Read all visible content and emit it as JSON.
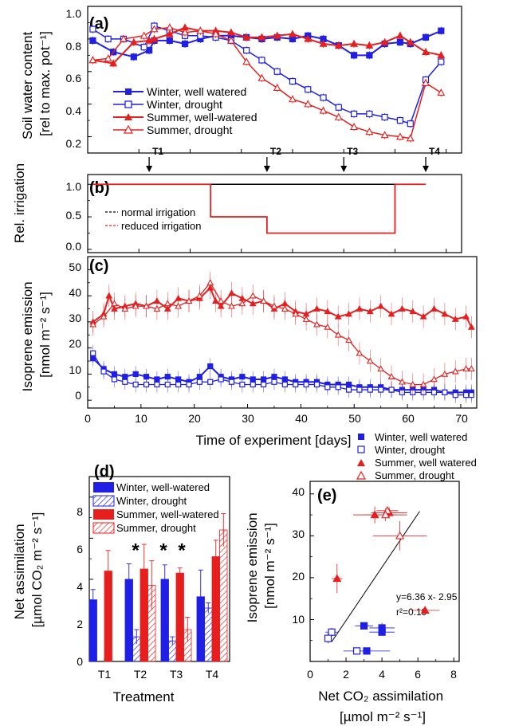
{
  "colors": {
    "blue": "#1f1fe6",
    "red": "#e61e1e",
    "black": "#000000"
  },
  "chart_data": [
    {
      "panel": "a",
      "type": "line",
      "panel_label": "(a)",
      "ylabel_line1": "Soil water content",
      "ylabel_line2": "[rel to max. pot⁻¹]",
      "xlim": [
        0,
        73
      ],
      "ylim": [
        0.1,
        1.0
      ],
      "yticks": [
        "0.2",
        "0.4",
        "0.6",
        "0.8",
        "1.0"
      ],
      "legend": {
        "placement": "left-middle"
      },
      "arrows": [
        {
          "label": "T1",
          "x": 12
        },
        {
          "label": "T2",
          "x": 35
        },
        {
          "label": "T3",
          "x": 50
        },
        {
          "label": "T4",
          "x": 66
        }
      ],
      "series": [
        {
          "name": "Winter, well watered",
          "color": "#1f1fe6",
          "marker": "square-filled",
          "x": [
            1,
            5,
            9,
            12,
            13,
            16,
            19,
            22,
            25,
            28,
            31,
            34,
            37,
            40,
            43,
            46,
            49,
            52,
            55,
            58,
            61,
            63,
            66,
            69
          ],
          "y": [
            0.79,
            0.72,
            0.69,
            0.73,
            0.79,
            0.79,
            0.77,
            0.8,
            0.82,
            0.82,
            0.81,
            0.8,
            0.81,
            0.8,
            0.82,
            0.8,
            0.76,
            0.7,
            0.7,
            0.77,
            0.78,
            0.77,
            0.81,
            0.85
          ]
        },
        {
          "name": "Winter, drought",
          "color": "#1f1fe6",
          "marker": "square-open",
          "x": [
            1,
            4,
            7,
            11,
            13,
            16,
            19,
            22,
            25,
            28,
            31,
            34,
            37,
            40,
            43,
            46,
            49,
            52,
            55,
            58,
            61,
            63,
            66,
            69
          ],
          "y": [
            0.86,
            0.8,
            0.8,
            0.75,
            0.88,
            0.85,
            0.82,
            0.82,
            0.81,
            0.79,
            0.73,
            0.67,
            0.6,
            0.54,
            0.49,
            0.44,
            0.38,
            0.34,
            0.34,
            0.32,
            0.3,
            0.28,
            0.55,
            0.66
          ]
        },
        {
          "name": "Summer, well-watered",
          "color": "#e61e1e",
          "marker": "triangle-filled",
          "x": [
            1,
            5,
            9,
            12,
            13,
            16,
            19,
            22,
            25,
            28,
            31,
            34,
            37,
            40,
            43,
            46,
            49,
            52,
            55,
            58,
            61,
            63,
            66,
            69
          ],
          "y": [
            0.67,
            0.65,
            0.78,
            0.79,
            0.8,
            0.83,
            0.87,
            0.85,
            0.85,
            0.84,
            0.81,
            0.81,
            0.82,
            0.83,
            0.8,
            0.77,
            0.76,
            0.77,
            0.76,
            0.78,
            0.82,
            0.78,
            0.72,
            0.7
          ]
        },
        {
          "name": "Summer, drought",
          "color": "#e61e1e",
          "marker": "triangle-open",
          "x": [
            1,
            4,
            7,
            11,
            13,
            16,
            19,
            22,
            25,
            28,
            31,
            34,
            37,
            40,
            43,
            46,
            49,
            52,
            55,
            58,
            61,
            63,
            66,
            69
          ],
          "y": [
            0.67,
            0.68,
            0.8,
            0.82,
            0.86,
            0.87,
            0.84,
            0.85,
            0.83,
            0.79,
            0.66,
            0.56,
            0.5,
            0.43,
            0.4,
            0.36,
            0.32,
            0.26,
            0.23,
            0.21,
            0.2,
            0.19,
            0.53,
            0.47
          ]
        }
      ]
    },
    {
      "panel": "b",
      "type": "line",
      "panel_label": "(b)",
      "ylabel_line1": "Rel. irrigation",
      "xlim": [
        0,
        73
      ],
      "ylim": [
        -0.05,
        1.15
      ],
      "yticks": [
        "0.0",
        "0.5",
        "1.0"
      ],
      "legend": {
        "placement": "left-middle"
      },
      "series": [
        {
          "name": "normal irrigation",
          "color": "#000000",
          "dashed": true,
          "x": [
            1,
            66
          ],
          "y": [
            1.0,
            1.0
          ]
        },
        {
          "name": "reduced irrigation",
          "color": "#e61e1e",
          "dashed": true,
          "x": [
            1,
            24,
            24,
            35,
            35,
            60,
            60,
            66
          ],
          "y": [
            1.0,
            1.0,
            0.5,
            0.5,
            0.25,
            0.25,
            1.0,
            1.0
          ]
        }
      ]
    },
    {
      "panel": "c",
      "type": "line",
      "panel_label": "(c)",
      "ylabel_line1": "Isoprene emission",
      "ylabel_line2": "[nmol m⁻² s⁻¹]",
      "xlabel": "Time of experiment [days]",
      "xlim": [
        0,
        73
      ],
      "ylim": [
        -3,
        55
      ],
      "xticks": [
        "0",
        "10",
        "20",
        "30",
        "40",
        "50",
        "60",
        "70"
      ],
      "yticks": [
        "0",
        "10",
        "20",
        "30",
        "40",
        "50"
      ],
      "series": [
        {
          "name": "Winter, well watered",
          "color": "#1f1fe6",
          "marker": "square-filled",
          "x": [
            1,
            3,
            5,
            7,
            9,
            11,
            13,
            15,
            17,
            19,
            21,
            23,
            25,
            27,
            29,
            31,
            33,
            35,
            37,
            39,
            41,
            43,
            45,
            47,
            49,
            51,
            53,
            55,
            57,
            59,
            61,
            63,
            65,
            67,
            69,
            71,
            72
          ],
          "y": [
            16,
            12,
            10,
            9,
            10,
            9,
            8,
            9,
            8,
            7,
            9,
            13,
            9,
            8,
            9,
            8,
            8,
            9,
            8,
            7,
            7,
            7,
            6,
            6,
            6,
            5,
            5,
            5,
            4,
            4,
            4,
            4,
            4,
            3,
            3,
            3,
            3
          ]
        },
        {
          "name": "Winter, drought",
          "color": "#1f1fe6",
          "marker": "square-open",
          "x": [
            1,
            3,
            5,
            7,
            9,
            11,
            13,
            15,
            17,
            19,
            21,
            23,
            25,
            27,
            29,
            31,
            33,
            35,
            37,
            39,
            41,
            43,
            45,
            47,
            49,
            51,
            53,
            55,
            57,
            59,
            61,
            63,
            65,
            67,
            69,
            71,
            72
          ],
          "y": [
            18,
            11,
            8,
            7,
            6,
            6,
            6,
            6,
            6,
            6,
            7,
            7,
            8,
            7,
            6,
            6,
            6,
            7,
            6,
            6,
            6,
            6,
            5,
            5,
            4,
            4,
            4,
            4,
            4,
            3,
            3,
            3,
            3,
            3,
            2,
            2,
            2
          ]
        },
        {
          "name": "Summer, well watered",
          "color": "#e61e1e",
          "marker": "triangle-filled",
          "x": [
            1,
            3,
            4,
            5,
            7,
            9,
            11,
            13,
            15,
            17,
            19,
            21,
            23,
            24,
            25,
            27,
            29,
            31,
            33,
            35,
            37,
            39,
            41,
            43,
            45,
            47,
            49,
            51,
            53,
            55,
            57,
            59,
            61,
            63,
            65,
            67,
            69,
            71,
            72
          ],
          "y": [
            30,
            33,
            40,
            35,
            36,
            37,
            36,
            38,
            35,
            39,
            38,
            39,
            43,
            38,
            36,
            41,
            39,
            37,
            38,
            35,
            37,
            34,
            33,
            35,
            34,
            32,
            33,
            35,
            34,
            36,
            33,
            35,
            34,
            32,
            35,
            33,
            31,
            32,
            28
          ]
        },
        {
          "name": "Summer, drought",
          "color": "#e61e1e",
          "marker": "triangle-open",
          "x": [
            1,
            3,
            5,
            7,
            9,
            11,
            13,
            15,
            17,
            19,
            21,
            23,
            25,
            27,
            29,
            31,
            33,
            35,
            37,
            39,
            41,
            43,
            45,
            47,
            49,
            51,
            53,
            55,
            57,
            59,
            61,
            63,
            65,
            67,
            69,
            71,
            72
          ],
          "y": [
            29,
            32,
            37,
            35,
            36,
            36,
            35,
            37,
            36,
            38,
            40,
            45,
            38,
            36,
            37,
            40,
            38,
            36,
            35,
            33,
            31,
            29,
            28,
            25,
            23,
            18,
            15,
            12,
            9,
            7,
            6,
            6,
            8,
            10,
            11,
            12,
            12
          ]
        }
      ]
    },
    {
      "panel": "d",
      "type": "bar",
      "panel_label": "(d)",
      "ylabel_line1": "Net assimilation",
      "ylabel_line2": "[µmol CO₂ m⁻² s⁻¹]",
      "xlabel": "Treatment",
      "categories": [
        "T1",
        "T2",
        "T3",
        "T4"
      ],
      "ylim": [
        0,
        9
      ],
      "yticks": [
        "0",
        "2",
        "4",
        "6",
        "8"
      ],
      "legend": {
        "placement": "top"
      },
      "series": [
        {
          "name": "Winter, well-watered",
          "color": "#1f1fe6",
          "hatched": false,
          "values": [
            3.0,
            4.0,
            4.0,
            3.15
          ],
          "errors": [
            0.5,
            0.75,
            0.7,
            1.3
          ]
        },
        {
          "name": "Winter, drought",
          "color": "#1f1fe6",
          "hatched": true,
          "values": [
            null,
            1.2,
            1.0,
            2.6
          ],
          "errors": [
            0,
            0.35,
            0.2,
            0.25
          ]
        },
        {
          "name": "Summer, well-watered",
          "color": "#e61e1e",
          "hatched": false,
          "values": [
            4.4,
            4.5,
            4.3,
            5.1
          ],
          "errors": [
            1.0,
            1.2,
            0.25,
            0.8
          ]
        },
        {
          "name": "Summer, drought",
          "color": "#e61e1e",
          "hatched": true,
          "values": [
            null,
            3.7,
            1.55,
            6.4
          ],
          "errors": [
            0,
            1.2,
            0.6,
            0.8
          ]
        }
      ],
      "significance": [
        {
          "category": "T2",
          "symbol": "*",
          "color": "#1f1fe6"
        },
        {
          "category": "T3",
          "symbol": "*",
          "color": "#1f1fe6"
        },
        {
          "category": "T3",
          "symbol": "*",
          "color": "#e61e1e"
        }
      ]
    },
    {
      "panel": "e",
      "type": "scatter",
      "panel_label": "(e)",
      "ylabel_line1": "Isoprene emission",
      "ylabel_line2": "[nmol m⁻² s⁻¹]",
      "xlabel_line1": "Net CO₂ assimilation",
      "xlabel_line2": "[µmol m⁻² s⁻¹]",
      "xlim": [
        0,
        8.3
      ],
      "ylim": [
        0,
        43
      ],
      "xticks": [
        "0",
        "2",
        "4",
        "6",
        "8"
      ],
      "yticks": [
        "10",
        "20",
        "30",
        "40"
      ],
      "legend": {
        "placement": "top"
      },
      "fit": {
        "equation": "y=6.36 x- 2.95",
        "r2": "r²=0.19",
        "x": [
          1.2,
          6.1
        ]
      },
      "series": [
        {
          "name": "Winter, well watered",
          "color": "#1f1fe6",
          "marker": "square-filled",
          "points": [
            {
              "x": 3.0,
              "y": 8.5,
              "xe": 0.5,
              "ye": 0.8
            },
            {
              "x": 4.0,
              "y": 8.0,
              "xe": 0.7,
              "ye": 1.2
            },
            {
              "x": 4.0,
              "y": 7.0,
              "xe": 0.7,
              "ye": 0.8
            },
            {
              "x": 3.15,
              "y": 2.5,
              "xe": 1.3,
              "ye": 0.3
            }
          ]
        },
        {
          "name": "Winter, drought",
          "color": "#1f1fe6",
          "marker": "square-open",
          "points": [
            {
              "x": 1.2,
              "y": 7.0,
              "xe": 0.35,
              "ye": 1.0
            },
            {
              "x": 1.0,
              "y": 5.5,
              "xe": 0.2,
              "ye": 1.2
            },
            {
              "x": 2.6,
              "y": 2.5,
              "xe": 0.25,
              "ye": 0.4
            }
          ]
        },
        {
          "name": "Summer, well watered",
          "color": "#e61e1e",
          "marker": "triangle-filled",
          "points": [
            {
              "x": 4.4,
              "y": 35.5,
              "xe": 1.0,
              "ye": 1.3
            },
            {
              "x": 3.6,
              "y": 35.0,
              "xe": 1.2,
              "ye": 2.0
            },
            {
              "x": 1.5,
              "y": 19.8,
              "xe": 0.3,
              "ye": 3.5
            },
            {
              "x": 6.4,
              "y": 12.2,
              "xe": 0.8,
              "ye": 0.6
            }
          ]
        },
        {
          "name": "Summer, drought",
          "color": "#e61e1e",
          "marker": "triangle-open",
          "points": [
            {
              "x": 4.3,
              "y": 36.0,
              "xe": 0.6,
              "ye": 1.0
            },
            {
              "x": 4.2,
              "y": 35.0,
              "xe": 1.2,
              "ye": 1.5
            },
            {
              "x": 5.0,
              "y": 30.0,
              "xe": 1.5,
              "ye": 3.5
            }
          ]
        }
      ]
    }
  ]
}
